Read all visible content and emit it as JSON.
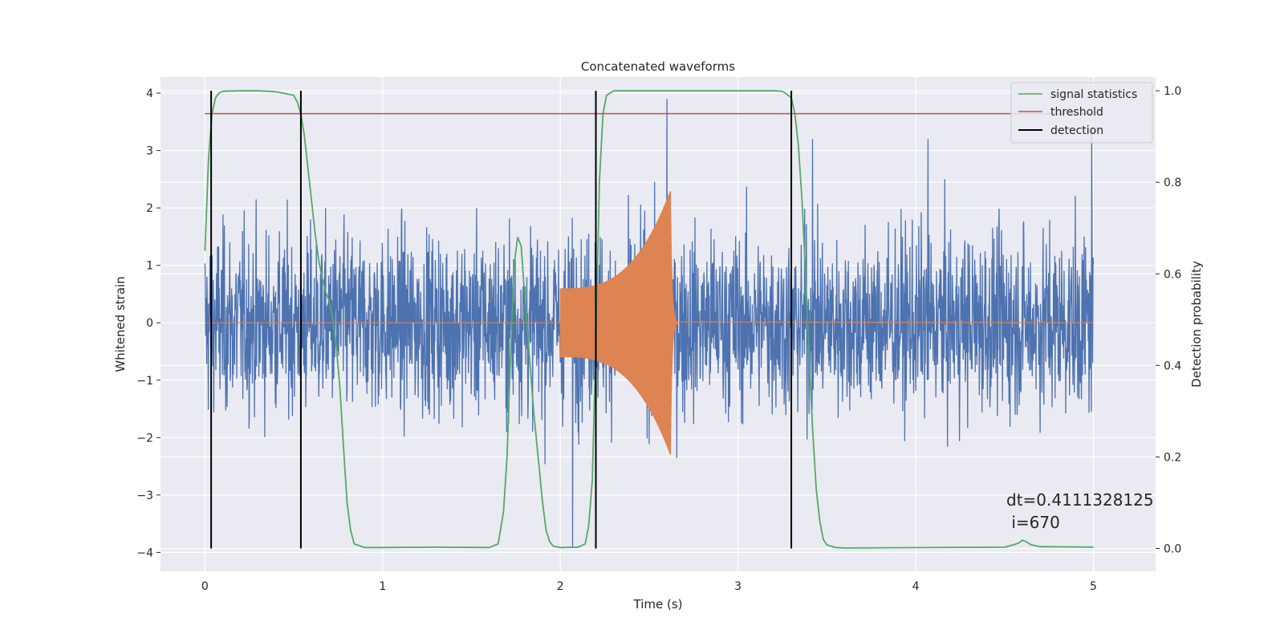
{
  "chart_data": {
    "type": "line",
    "title": "Concatenated waveforms",
    "xlabel": "Time (s)",
    "ylabel": "Whitened strain",
    "y2label": "Detection probability",
    "xlim": [
      -0.25,
      5.35
    ],
    "ylim": [
      -4.33,
      4.28
    ],
    "y2lim": [
      -0.05,
      1.03
    ],
    "xticks": [
      0,
      1,
      2,
      3,
      4,
      5
    ],
    "yticks": [
      -4,
      -3,
      -2,
      -1,
      0,
      1,
      2,
      3,
      4
    ],
    "y2ticks": [
      0.0,
      0.2,
      0.4,
      0.6,
      0.8,
      1.0
    ],
    "xtick_labels": [
      "0",
      "1",
      "2",
      "3",
      "4",
      "5"
    ],
    "ytick_labels": [
      "−4",
      "−3",
      "−2",
      "−1",
      "0",
      "1",
      "2",
      "3",
      "4"
    ],
    "y2tick_labels": [
      "0.0",
      "0.2",
      "0.4",
      "0.6",
      "0.8",
      "1.0"
    ],
    "grid": true,
    "background": "#eaeaf2",
    "legend_position": "top-right",
    "series": [
      {
        "name": "noise-strain",
        "color": "#4c72b0",
        "axis": "left",
        "kind": "noise",
        "x_range": [
          0,
          5
        ],
        "envelope": 2.4,
        "peaks": [
          [
            2.6,
            3.9
          ],
          [
            2.07,
            -3.9
          ],
          [
            4.99,
            3.4
          ],
          [
            3.42,
            3.2
          ],
          [
            4.07,
            3.2
          ]
        ]
      },
      {
        "name": "chirp-waveform",
        "color": "#dd8452",
        "axis": "left",
        "kind": "chirp",
        "start": 2.0,
        "merger": 2.62,
        "start_amp": 0.6,
        "peak_amp": 2.3,
        "end": 5.0
      },
      {
        "name": "signal statistics",
        "color": "#55a868",
        "axis": "right",
        "kind": "curve",
        "x": [
          0.0,
          0.02,
          0.04,
          0.06,
          0.08,
          0.1,
          0.2,
          0.3,
          0.4,
          0.5,
          0.52,
          0.54,
          0.56,
          0.58,
          0.6,
          0.62,
          0.64,
          0.66,
          0.68,
          0.7,
          0.72,
          0.74,
          0.76,
          0.78,
          0.8,
          0.82,
          0.84,
          0.9,
          1.0,
          1.3,
          1.6,
          1.65,
          1.68,
          1.7,
          1.72,
          1.74,
          1.76,
          1.78,
          1.8,
          1.85,
          1.9,
          1.92,
          1.94,
          1.96,
          2.0,
          2.1,
          2.14,
          2.16,
          2.18,
          2.2,
          2.22,
          2.24,
          2.26,
          2.3,
          2.4,
          3.2,
          3.25,
          3.3,
          3.32,
          3.34,
          3.36,
          3.38,
          3.4,
          3.42,
          3.44,
          3.46,
          3.48,
          3.5,
          3.55,
          3.6,
          4.5,
          4.55,
          4.58,
          4.6,
          4.62,
          4.65,
          4.7,
          5.0
        ],
        "y": [
          0.65,
          0.85,
          0.95,
          0.985,
          0.995,
          0.999,
          1.0,
          1.0,
          0.998,
          0.99,
          0.975,
          0.95,
          0.9,
          0.83,
          0.76,
          0.69,
          0.63,
          0.59,
          0.56,
          0.54,
          0.5,
          0.44,
          0.35,
          0.22,
          0.1,
          0.04,
          0.01,
          0.002,
          0.002,
          0.003,
          0.002,
          0.01,
          0.08,
          0.2,
          0.42,
          0.62,
          0.68,
          0.66,
          0.55,
          0.3,
          0.1,
          0.04,
          0.015,
          0.005,
          0.002,
          0.003,
          0.01,
          0.05,
          0.15,
          0.45,
          0.8,
          0.95,
          0.99,
          1.0,
          1.0,
          1.0,
          0.999,
          0.985,
          0.95,
          0.88,
          0.76,
          0.6,
          0.42,
          0.26,
          0.13,
          0.06,
          0.02,
          0.008,
          0.002,
          0.001,
          0.003,
          0.008,
          0.012,
          0.018,
          0.015,
          0.008,
          0.004,
          0.003
        ]
      },
      {
        "name": "threshold",
        "color": "#c44e52",
        "axis": "right",
        "kind": "hline",
        "value": 0.95,
        "x_range": [
          0,
          5
        ]
      },
      {
        "name": "detection",
        "color": "#000000",
        "axis": "right",
        "kind": "vlines",
        "x": [
          0.035,
          0.54,
          2.2,
          3.3
        ],
        "y_range": [
          0.0,
          1.0
        ]
      }
    ],
    "legend": [
      "signal statistics",
      "threshold",
      "detection"
    ],
    "annotation": {
      "line1": "dt=0.4111328125",
      "line2": " i=670"
    }
  }
}
